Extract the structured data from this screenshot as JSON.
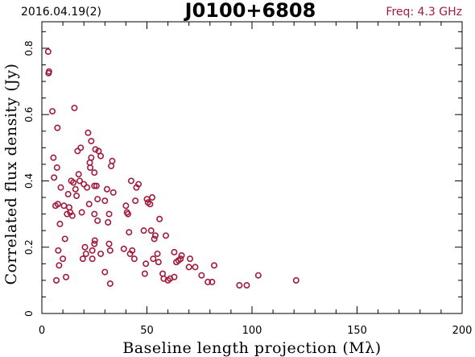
{
  "header": {
    "date": "2016.04.19(2)",
    "source": "J0100+6808",
    "freq": "Freq: 4.3 GHz"
  },
  "colors": {
    "marker": "#a01c3c",
    "axis": "#000000",
    "freq_text": "#a01c3c"
  },
  "chart_data": {
    "type": "scatter",
    "title": "J0100+6808",
    "xlabel": "Baseline length projection (Mλ)",
    "ylabel": "Correlated flux density (Jy)",
    "xlim": [
      0,
      200
    ],
    "ylim": [
      0,
      0.88
    ],
    "xticks": [
      0,
      50,
      100,
      150,
      200
    ],
    "yticks": [
      0,
      0.2,
      0.4,
      0.6,
      0.8
    ],
    "grid": false,
    "marker": "open-circle",
    "points": [
      [
        3.0,
        0.79
      ],
      [
        3.2,
        0.725
      ],
      [
        3.4,
        0.73
      ],
      [
        5.0,
        0.61
      ],
      [
        5.5,
        0.47
      ],
      [
        5.8,
        0.41
      ],
      [
        6.5,
        0.325
      ],
      [
        6.9,
        0.1
      ],
      [
        7.2,
        0.44
      ],
      [
        7.4,
        0.56
      ],
      [
        7.6,
        0.33
      ],
      [
        7.8,
        0.19
      ],
      [
        8.2,
        0.145
      ],
      [
        8.6,
        0.27
      ],
      [
        9.0,
        0.38
      ],
      [
        10.0,
        0.165
      ],
      [
        10.5,
        0.325
      ],
      [
        11.0,
        0.225
      ],
      [
        11.5,
        0.11
      ],
      [
        12.0,
        0.3
      ],
      [
        12.5,
        0.36
      ],
      [
        13.0,
        0.32
      ],
      [
        13.5,
        0.305
      ],
      [
        14.0,
        0.4
      ],
      [
        14.5,
        0.295
      ],
      [
        15.0,
        0.395
      ],
      [
        15.5,
        0.62
      ],
      [
        16.0,
        0.375
      ],
      [
        16.5,
        0.355
      ],
      [
        17.0,
        0.49
      ],
      [
        17.5,
        0.42
      ],
      [
        18.0,
        0.4
      ],
      [
        18.5,
        0.5
      ],
      [
        19.0,
        0.305
      ],
      [
        19.5,
        0.165
      ],
      [
        20.0,
        0.39
      ],
      [
        20.5,
        0.2
      ],
      [
        21.0,
        0.18
      ],
      [
        21.5,
        0.38
      ],
      [
        22.0,
        0.545
      ],
      [
        22.5,
        0.33
      ],
      [
        22.8,
        0.455
      ],
      [
        23.0,
        0.44
      ],
      [
        23.5,
        0.47
      ],
      [
        23.5,
        0.52
      ],
      [
        24.0,
        0.19
      ],
      [
        24.0,
        0.165
      ],
      [
        25.0,
        0.425
      ],
      [
        25.0,
        0.385
      ],
      [
        25.0,
        0.3
      ],
      [
        25.0,
        0.21
      ],
      [
        25.2,
        0.22
      ],
      [
        25.5,
        0.495
      ],
      [
        26.0,
        0.385
      ],
      [
        26.5,
        0.345
      ],
      [
        26.5,
        0.28
      ],
      [
        27.0,
        0.49
      ],
      [
        28.0,
        0.475
      ],
      [
        28.0,
        0.18
      ],
      [
        30.0,
        0.125
      ],
      [
        30.0,
        0.34
      ],
      [
        31.0,
        0.375
      ],
      [
        31.5,
        0.275
      ],
      [
        32.0,
        0.3
      ],
      [
        32.0,
        0.21
      ],
      [
        32.5,
        0.19
      ],
      [
        33.0,
        0.445
      ],
      [
        33.5,
        0.46
      ],
      [
        34.0,
        0.365
      ],
      [
        32.5,
        0.09
      ],
      [
        39.0,
        0.195
      ],
      [
        40.0,
        0.325
      ],
      [
        40.5,
        0.305
      ],
      [
        41.0,
        0.3
      ],
      [
        41.5,
        0.245
      ],
      [
        42.0,
        0.18
      ],
      [
        42.5,
        0.4
      ],
      [
        43.0,
        0.19
      ],
      [
        44.0,
        0.165
      ],
      [
        44.5,
        0.34
      ],
      [
        45.0,
        0.38
      ],
      [
        46.0,
        0.39
      ],
      [
        48.5,
        0.25
      ],
      [
        49.0,
        0.12
      ],
      [
        49.5,
        0.15
      ],
      [
        50.0,
        0.345
      ],
      [
        50.5,
        0.335
      ],
      [
        51.5,
        0.33
      ],
      [
        52.0,
        0.25
      ],
      [
        52.5,
        0.35
      ],
      [
        53.0,
        0.165
      ],
      [
        53.5,
        0.225
      ],
      [
        54.0,
        0.235
      ],
      [
        55.0,
        0.18
      ],
      [
        55.5,
        0.155
      ],
      [
        56.0,
        0.285
      ],
      [
        57.5,
        0.12
      ],
      [
        58.0,
        0.105
      ],
      [
        59.0,
        0.235
      ],
      [
        60.0,
        0.1
      ],
      [
        61.0,
        0.105
      ],
      [
        63.0,
        0.11
      ],
      [
        63.0,
        0.185
      ],
      [
        64.0,
        0.155
      ],
      [
        65.0,
        0.16
      ],
      [
        66.0,
        0.165
      ],
      [
        66.5,
        0.175
      ],
      [
        70.0,
        0.14
      ],
      [
        70.5,
        0.165
      ],
      [
        73.0,
        0.14
      ],
      [
        76.0,
        0.115
      ],
      [
        79.0,
        0.095
      ],
      [
        81.0,
        0.095
      ],
      [
        82.0,
        0.145
      ],
      [
        94.0,
        0.085
      ],
      [
        97.5,
        0.085
      ],
      [
        103.0,
        0.115
      ],
      [
        121.0,
        0.1
      ]
    ]
  }
}
